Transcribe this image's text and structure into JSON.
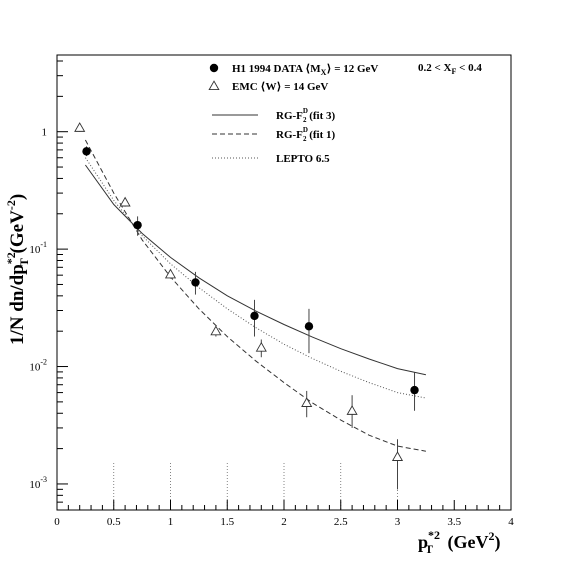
{
  "chart_data": {
    "type": "scatter",
    "y_scale": "log",
    "xlim": [
      0,
      4
    ],
    "ylim": [
      0.0006,
      4.5
    ],
    "x_ticks": [
      {
        "value": 0,
        "label": "0"
      },
      {
        "value": 0.5,
        "label": "0.5"
      },
      {
        "value": 1,
        "label": "1"
      },
      {
        "value": 1.5,
        "label": "1.5"
      },
      {
        "value": 2,
        "label": "2"
      },
      {
        "value": 2.5,
        "label": "2.5"
      },
      {
        "value": 3,
        "label": "3"
      },
      {
        "value": 3.5,
        "label": "3.5"
      },
      {
        "value": 4,
        "label": "4"
      }
    ],
    "y_ticks": [
      {
        "value": 1,
        "base": "1",
        "exp": ""
      },
      {
        "value": 0.1,
        "base": "10",
        "exp": "-1"
      },
      {
        "value": 0.01,
        "base": "10",
        "exp": "-2"
      },
      {
        "value": 0.001,
        "base": "10",
        "exp": "-3"
      }
    ],
    "dotted_gridlines_x": [
      0.5,
      1,
      1.5,
      2,
      2.5,
      3
    ],
    "xlabel": {
      "base": "p",
      "sub": "T",
      "sup": "*2",
      "unit": "(GeV",
      "unit_sup": "2",
      "close": ")"
    },
    "ylabel": {
      "pre": "1/N dn/dp",
      "sub": "T",
      "sup": "*2",
      "unit": "(GeV",
      "unit_sup": "-2",
      "close": ")"
    },
    "annotation": {
      "pre": "0.2 < X",
      "sub": "F",
      "post": " < 0.4"
    },
    "legend_placement": "top-center",
    "series": [
      {
        "name": "H1 1994 DATA ⟨M",
        "name_sub": "X",
        "name_post": "⟩ = 12 GeV",
        "marker": "filled-circle",
        "points": [
          {
            "x": 0.26,
            "y": 0.68,
            "yerr": [
              0.62,
              0.75
            ]
          },
          {
            "x": 0.71,
            "y": 0.16,
            "yerr": [
              0.13,
              0.19
            ]
          },
          {
            "x": 1.22,
            "y": 0.052,
            "yerr": [
              0.041,
              0.064
            ]
          },
          {
            "x": 1.74,
            "y": 0.027,
            "yerr": [
              0.018,
              0.037
            ]
          },
          {
            "x": 2.22,
            "y": 0.022,
            "yerr": [
              0.013,
              0.031
            ]
          },
          {
            "x": 3.15,
            "y": 0.0063,
            "yerr": [
              0.0042,
              0.0089
            ]
          }
        ]
      },
      {
        "name": "EMC ⟨W⟩ = 14 GeV",
        "marker": "open-triangle",
        "points": [
          {
            "x": 0.2,
            "y": 1.08,
            "yerr": [
              1.0,
              1.15
            ]
          },
          {
            "x": 0.6,
            "y": 0.25,
            "yerr": [
              0.23,
              0.27
            ]
          },
          {
            "x": 1.0,
            "y": 0.061,
            "yerr": [
              0.056,
              0.066
            ]
          },
          {
            "x": 1.4,
            "y": 0.02,
            "yerr": [
              0.018,
              0.022
            ]
          },
          {
            "x": 1.8,
            "y": 0.0145,
            "yerr": [
              0.012,
              0.017
            ]
          },
          {
            "x": 2.2,
            "y": 0.0049,
            "yerr": [
              0.0037,
              0.0062
            ]
          },
          {
            "x": 2.6,
            "y": 0.0042,
            "yerr": [
              0.003,
              0.0057
            ]
          },
          {
            "x": 3.0,
            "y": 0.0017,
            "yerr": [
              0.0009,
              0.0024
            ]
          }
        ]
      }
    ],
    "curves": [
      {
        "name": "RG-F",
        "name_sub": "2",
        "name_sup": "D",
        "name_post": " (fit 3)",
        "style": "solid",
        "x": [
          0.25,
          0.5,
          0.75,
          1.0,
          1.25,
          1.5,
          1.75,
          2.0,
          2.25,
          2.5,
          2.75,
          3.0,
          3.25
        ],
        "y": [
          0.52,
          0.24,
          0.136,
          0.085,
          0.057,
          0.04,
          0.0298,
          0.0228,
          0.0178,
          0.0142,
          0.0116,
          0.0096,
          0.0085
        ]
      },
      {
        "name": "RG-F",
        "name_sub": "2",
        "name_sup": "D",
        "name_post": " (fit 1)",
        "style": "dashed",
        "x": [
          0.25,
          0.5,
          0.75,
          1.0,
          1.25,
          1.5,
          1.75,
          2.0,
          2.25,
          2.5,
          2.75,
          3.0,
          3.25
        ],
        "y": [
          0.85,
          0.3,
          0.12,
          0.058,
          0.031,
          0.018,
          0.0112,
          0.0073,
          0.0049,
          0.0035,
          0.0026,
          0.0021,
          0.0019
        ]
      },
      {
        "name": "LEPTO 6.5",
        "style": "dotted",
        "x": [
          0.25,
          0.5,
          0.75,
          1.0,
          1.25,
          1.5,
          1.75,
          2.0,
          2.25,
          2.5,
          2.75,
          3.0,
          3.25
        ],
        "y": [
          0.6,
          0.26,
          0.13,
          0.075,
          0.047,
          0.031,
          0.0215,
          0.0155,
          0.0117,
          0.0091,
          0.0073,
          0.006,
          0.0054
        ]
      }
    ]
  }
}
